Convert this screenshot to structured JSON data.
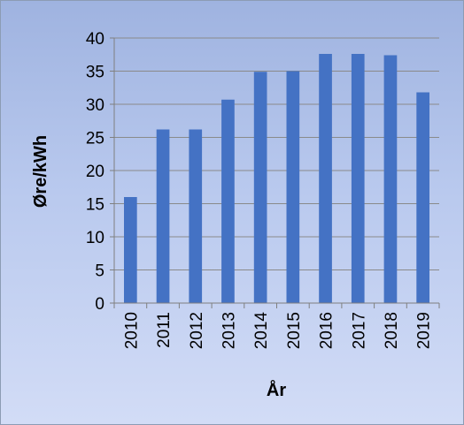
{
  "chart_data": {
    "type": "bar",
    "categories": [
      "2010",
      "2011",
      "2012",
      "2013",
      "2014",
      "2015",
      "2016",
      "2017",
      "2018",
      "2019"
    ],
    "values": [
      16,
      26.2,
      26.2,
      30.7,
      34.9,
      35,
      37.6,
      37.6,
      37.4,
      31.8
    ],
    "title": "",
    "xlabel": "År",
    "ylabel": "Øre/kWh",
    "ylim": [
      0,
      40
    ],
    "yticks": [
      0,
      5,
      10,
      15,
      20,
      25,
      30,
      35,
      40
    ],
    "grid": true,
    "legend": "none",
    "colors": {
      "bar": "#4472c4",
      "gridline": "#8a8a8a",
      "axis": "#7f7f7f"
    }
  }
}
